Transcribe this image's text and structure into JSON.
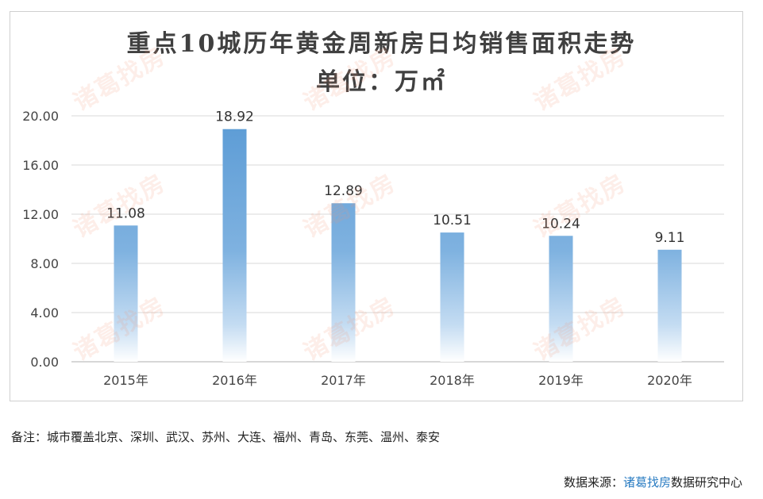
{
  "chart_data": {
    "type": "bar",
    "title": "重点10城历年黄金周新房日均销售面积走势",
    "subtitle": "单位：万㎡",
    "categories": [
      "2015年",
      "2016年",
      "2017年",
      "2018年",
      "2019年",
      "2020年"
    ],
    "values": [
      11.08,
      18.92,
      12.89,
      10.51,
      10.24,
      9.11
    ],
    "value_labels": [
      "11.08",
      "18.92",
      "12.89",
      "10.51",
      "10.24",
      "9.11"
    ],
    "ylim": [
      0,
      20
    ],
    "yticks": [
      "0.00",
      "4.00",
      "8.00",
      "12.00",
      "16.00",
      "20.00"
    ],
    "xlabel": "",
    "ylabel": "",
    "grid": true,
    "bar_color": "#5b9bd5"
  },
  "watermark_text": "诸葛找房",
  "footer": {
    "note": "备注：城市覆盖北京、深圳、武汉、苏州、大连、福州、青岛、东莞、温州、泰安",
    "source_prefix": "数据来源：",
    "source_brand": "诸葛找房",
    "source_suffix": "数据研究中心"
  }
}
